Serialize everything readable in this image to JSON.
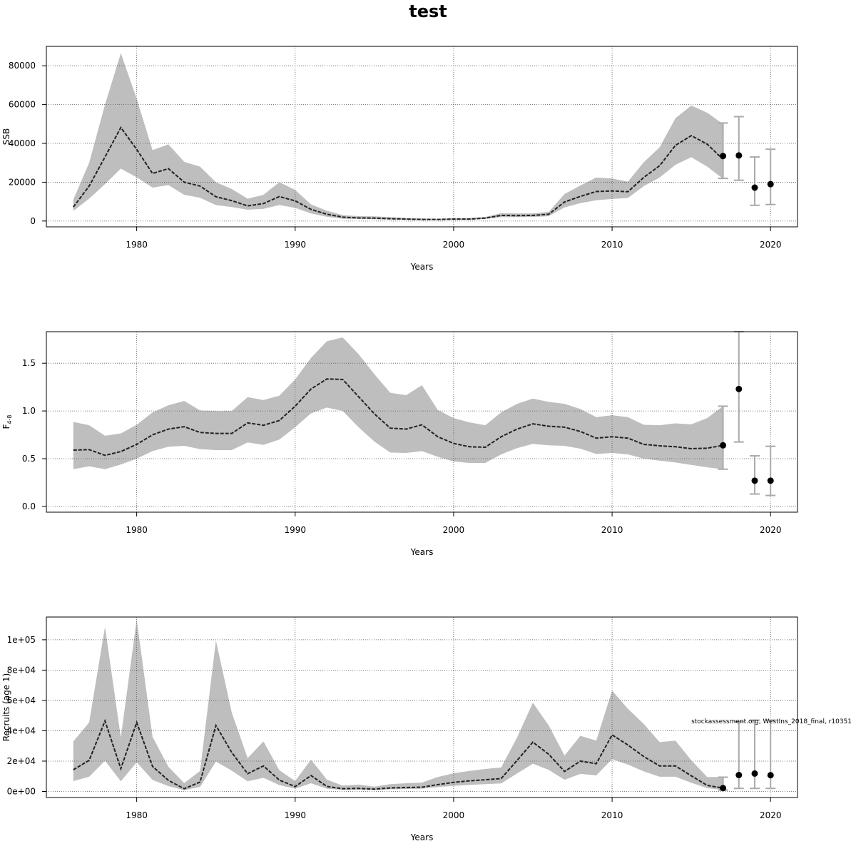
{
  "title": "test",
  "annotation": "stockassessment.org, WestIns_2018_final, r10351",
  "colors": {
    "band": "#bebebe",
    "line": "#222222",
    "forecast_bar": "#aaaaaa",
    "point": "#000000",
    "grid": "#555555"
  },
  "chart_data": [
    {
      "type": "line",
      "id": "ssb",
      "xlabel": "Years",
      "ylabel": "SSB",
      "xlim": [
        1974.3,
        2021.7
      ],
      "ylim": [
        -3000,
        90000
      ],
      "xticks": [
        1980,
        1990,
        2000,
        2010,
        2020
      ],
      "yticks": [
        0,
        20000,
        40000,
        60000,
        80000
      ],
      "ytick_labels": [
        "0",
        "20000",
        "40000",
        "60000",
        "80000"
      ],
      "grid": true,
      "x": [
        1976,
        1977,
        1978,
        1979,
        1980,
        1981,
        1982,
        1983,
        1984,
        1985,
        1986,
        1987,
        1988,
        1989,
        1990,
        1991,
        1992,
        1993,
        1994,
        1995,
        1996,
        1997,
        1998,
        1999,
        2000,
        2001,
        2002,
        2003,
        2004,
        2005,
        2006,
        2007,
        2008,
        2009,
        2010,
        2011,
        2012,
        2013,
        2014,
        2015,
        2016,
        2017
      ],
      "estimate": [
        7200,
        18000,
        33000,
        48200,
        36900,
        24500,
        27000,
        20000,
        18000,
        12500,
        10500,
        7800,
        9000,
        12600,
        10400,
        6000,
        3500,
        2000,
        1600,
        1500,
        1200,
        1000,
        800,
        800,
        1000,
        1000,
        1500,
        2900,
        2800,
        2900,
        3500,
        9800,
        12700,
        15200,
        15500,
        15100,
        22500,
        28500,
        39000,
        44000,
        39600,
        31800
      ],
      "lower": [
        5200,
        11500,
        19000,
        27000,
        22500,
        17200,
        18500,
        13500,
        12000,
        8200,
        7200,
        5800,
        6300,
        8200,
        6800,
        3900,
        2200,
        1200,
        1000,
        900,
        700,
        600,
        500,
        500,
        600,
        600,
        1100,
        2000,
        2000,
        2100,
        2500,
        7000,
        9200,
        10700,
        11400,
        11900,
        18000,
        22400,
        29000,
        32900,
        28000,
        21800
      ],
      "upper": [
        11000,
        30000,
        60000,
        86500,
        63000,
        36500,
        39500,
        30500,
        28000,
        20000,
        16500,
        11500,
        13500,
        20000,
        16000,
        8600,
        5300,
        3000,
        2500,
        2400,
        2000,
        1600,
        1300,
        1200,
        1400,
        1500,
        2100,
        4000,
        3900,
        3900,
        4700,
        13900,
        18300,
        22400,
        21900,
        20300,
        30300,
        38000,
        53000,
        59500,
        55800,
        50000
      ],
      "forecast": [
        {
          "x": 2017,
          "y": 33500,
          "lo": 22000,
          "hi": 50500
        },
        {
          "x": 2018,
          "y": 33800,
          "lo": 21000,
          "hi": 53800
        },
        {
          "x": 2019,
          "y": 17200,
          "lo": 8100,
          "hi": 33000
        },
        {
          "x": 2020,
          "y": 19000,
          "lo": 8500,
          "hi": 37000
        }
      ]
    },
    {
      "type": "line",
      "id": "fbar",
      "xlabel": "Years",
      "ylabel": "F",
      "ylabel_sub": "4-8",
      "xlim": [
        1974.3,
        2021.7
      ],
      "ylim": [
        -0.06,
        1.83
      ],
      "xticks": [
        1980,
        1990,
        2000,
        2010,
        2020
      ],
      "yticks": [
        0,
        0.5,
        1,
        1.5
      ],
      "ytick_labels": [
        "0.0",
        "0.5",
        "1.0",
        "1.5"
      ],
      "grid": true,
      "x": [
        1976,
        1977,
        1978,
        1979,
        1980,
        1981,
        1982,
        1983,
        1984,
        1985,
        1986,
        1987,
        1988,
        1989,
        1990,
        1991,
        1992,
        1993,
        1994,
        1995,
        1996,
        1997,
        1998,
        1999,
        2000,
        2001,
        2002,
        2003,
        2004,
        2005,
        2006,
        2007,
        2008,
        2009,
        2010,
        2011,
        2012,
        2013,
        2014,
        2015,
        2016,
        2017
      ],
      "estimate": [
        0.59,
        0.595,
        0.535,
        0.575,
        0.65,
        0.75,
        0.81,
        0.835,
        0.775,
        0.765,
        0.765,
        0.875,
        0.85,
        0.9,
        1.05,
        1.23,
        1.335,
        1.33,
        1.15,
        0.97,
        0.82,
        0.81,
        0.855,
        0.73,
        0.66,
        0.625,
        0.62,
        0.73,
        0.81,
        0.865,
        0.84,
        0.83,
        0.785,
        0.715,
        0.73,
        0.715,
        0.65,
        0.635,
        0.625,
        0.605,
        0.61,
        0.64
      ],
      "lower": [
        0.39,
        0.42,
        0.39,
        0.44,
        0.5,
        0.58,
        0.625,
        0.635,
        0.6,
        0.59,
        0.59,
        0.67,
        0.645,
        0.7,
        0.83,
        0.975,
        1.035,
        1.0,
        0.83,
        0.68,
        0.565,
        0.56,
        0.58,
        0.52,
        0.47,
        0.455,
        0.455,
        0.545,
        0.61,
        0.655,
        0.64,
        0.635,
        0.605,
        0.55,
        0.56,
        0.545,
        0.5,
        0.48,
        0.46,
        0.435,
        0.41,
        0.39
      ],
      "upper": [
        0.885,
        0.85,
        0.74,
        0.765,
        0.855,
        0.985,
        1.06,
        1.105,
        1.005,
        1.0,
        1.0,
        1.145,
        1.115,
        1.16,
        1.33,
        1.555,
        1.73,
        1.77,
        1.595,
        1.385,
        1.19,
        1.165,
        1.27,
        1.01,
        0.925,
        0.88,
        0.85,
        0.985,
        1.075,
        1.13,
        1.095,
        1.075,
        1.02,
        0.935,
        0.955,
        0.935,
        0.855,
        0.85,
        0.87,
        0.86,
        0.925,
        1.05
      ],
      "forecast": [
        {
          "x": 2017,
          "y": 0.64,
          "lo": 0.39,
          "hi": 1.05
        },
        {
          "x": 2018,
          "y": 1.23,
          "lo": 0.675,
          "hi": 1.83
        },
        {
          "x": 2019,
          "y": 0.27,
          "lo": 0.13,
          "hi": 0.53
        },
        {
          "x": 2020,
          "y": 0.27,
          "lo": 0.115,
          "hi": 0.63
        }
      ]
    },
    {
      "type": "line",
      "id": "recruits",
      "xlabel": "Years",
      "ylabel": "Recruits (age 1)",
      "xlim": [
        1974.3,
        2021.7
      ],
      "ylim": [
        -4000,
        115000
      ],
      "xticks": [
        1980,
        1990,
        2000,
        2010,
        2020
      ],
      "yticks": [
        0,
        20000,
        40000,
        60000,
        80000,
        100000
      ],
      "ytick_labels": [
        "0e+00",
        "2e+04",
        "4e+04",
        "6e+04",
        "8e+04",
        "1e+05"
      ],
      "grid": true,
      "x": [
        1976,
        1977,
        1978,
        1979,
        1980,
        1981,
        1982,
        1983,
        1984,
        1985,
        1986,
        1987,
        1988,
        1989,
        1990,
        1991,
        1992,
        1993,
        1994,
        1995,
        1996,
        1997,
        1998,
        1999,
        2000,
        2001,
        2002,
        2003,
        2004,
        2005,
        2006,
        2007,
        2008,
        2009,
        2010,
        2011,
        2012,
        2013,
        2014,
        2015,
        2016,
        2017
      ],
      "estimate": [
        14300,
        20500,
        46500,
        15000,
        45500,
        16500,
        7300,
        1800,
        6200,
        43500,
        25700,
        11700,
        16800,
        7500,
        3200,
        10500,
        3300,
        1800,
        2000,
        1500,
        2300,
        2600,
        2800,
        4500,
        6000,
        7000,
        7700,
        8500,
        20400,
        32500,
        24500,
        13200,
        20000,
        18300,
        37300,
        30600,
        23000,
        16800,
        16800,
        10300,
        4000,
        2200
      ],
      "lower": [
        6800,
        9700,
        20300,
        6700,
        19200,
        7600,
        3500,
        800,
        3000,
        19700,
        13700,
        6700,
        9000,
        4200,
        1800,
        5400,
        1800,
        1000,
        1100,
        900,
        1400,
        1600,
        1800,
        2900,
        3700,
        4300,
        4800,
        5300,
        11800,
        18300,
        14200,
        7700,
        11600,
        10600,
        21300,
        17700,
        13200,
        9700,
        9700,
        5700,
        2200,
        1000
      ],
      "upper": [
        33000,
        45500,
        108500,
        35500,
        113500,
        36000,
        16300,
        5500,
        13500,
        99500,
        52000,
        22000,
        33000,
        14000,
        6900,
        21000,
        7800,
        3800,
        4500,
        3200,
        4800,
        5400,
        5800,
        9500,
        12000,
        13500,
        14800,
        15800,
        35500,
        58500,
        43500,
        23700,
        36700,
        33500,
        66500,
        54500,
        44500,
        32500,
        33500,
        20500,
        9500,
        9500
      ],
      "forecast": [
        {
          "x": 2017,
          "y": 2200,
          "lo": 900,
          "hi": 9400
        },
        {
          "x": 2018,
          "y": 10800,
          "lo": 2000,
          "hi": 46000
        },
        {
          "x": 2019,
          "y": 11800,
          "lo": 2000,
          "hi": 47000
        },
        {
          "x": 2020,
          "y": 10700,
          "lo": 2000,
          "hi": 47000
        }
      ]
    }
  ]
}
